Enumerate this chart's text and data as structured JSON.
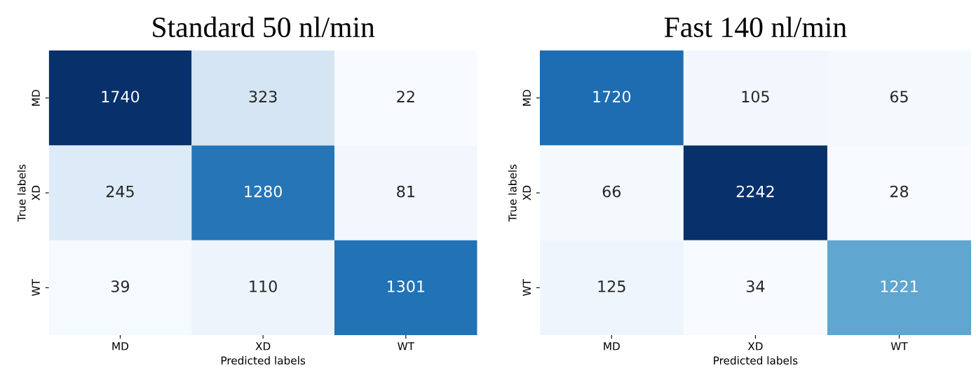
{
  "chart_data": [
    {
      "type": "heatmap",
      "title": "Standard 50 nl/min",
      "xlabel": "Predicted labels",
      "ylabel": "True labels",
      "categories": [
        "MD",
        "XD",
        "WT"
      ],
      "y_categories": [
        "MD",
        "XD",
        "WT"
      ],
      "data_labels": true,
      "cells": [
        [
          1740,
          323,
          22
        ],
        [
          245,
          1280,
          81
        ],
        [
          39,
          110,
          1301
        ]
      ]
    },
    {
      "type": "heatmap",
      "title": "Fast 140 nl/min",
      "xlabel": "Predicted labels",
      "ylabel": "True labels",
      "categories": [
        "MD",
        "XD",
        "WT"
      ],
      "y_categories": [
        "MD",
        "XD",
        "WT"
      ],
      "data_labels": true,
      "cells": [
        [
          1720,
          105,
          65
        ],
        [
          66,
          2242,
          28
        ],
        [
          125,
          34,
          1221
        ]
      ]
    }
  ]
}
